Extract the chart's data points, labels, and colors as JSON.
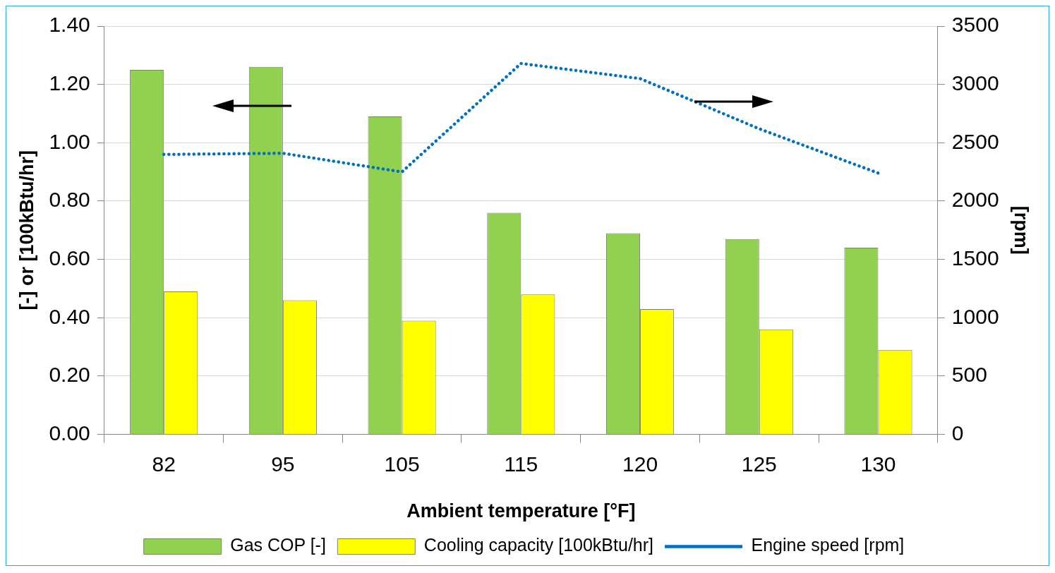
{
  "chart_data": {
    "type": "bar",
    "xlabel": "Ambient temperature [°F]",
    "ylabel": "[-] or [100kBtu/hr]",
    "y2label": "[rpm]",
    "categories": [
      "82",
      "95",
      "105",
      "115",
      "120",
      "125",
      "130"
    ],
    "series": [
      {
        "name": "Gas COP [-]",
        "color": "#92d050",
        "values": [
          1.25,
          1.26,
          1.09,
          0.76,
          0.69,
          0.67,
          0.64
        ]
      },
      {
        "name": "Cooling capacity [100kBtu/hr]",
        "color": "#ffff00",
        "values": [
          0.49,
          0.46,
          0.39,
          0.48,
          0.43,
          0.36,
          0.29
        ]
      },
      {
        "name": "Engine speed [rpm]",
        "type": "line",
        "axis": "y2",
        "line_style": "dotted",
        "color": "#0070c0",
        "values": [
          2400,
          2410,
          2250,
          3180,
          3050,
          2620,
          2240
        ]
      }
    ],
    "ylim": [
      0,
      1.4
    ],
    "yticks": [
      {
        "value": 0,
        "label": "0.00"
      },
      {
        "value": 0.2,
        "label": "0.20"
      },
      {
        "value": 0.4,
        "label": "0.40"
      },
      {
        "value": 0.6,
        "label": "0.60"
      },
      {
        "value": 0.8,
        "label": "0.80"
      },
      {
        "value": 1,
        "label": "1.00"
      },
      {
        "value": 1.2,
        "label": "1.20"
      },
      {
        "value": 1.4,
        "label": "1.40"
      }
    ],
    "y2lim": [
      0,
      3500
    ],
    "y2ticks": [
      0,
      500,
      1000,
      1500,
      2000,
      2500,
      3000,
      3500
    ],
    "grid": "y",
    "legend": "bottom"
  }
}
